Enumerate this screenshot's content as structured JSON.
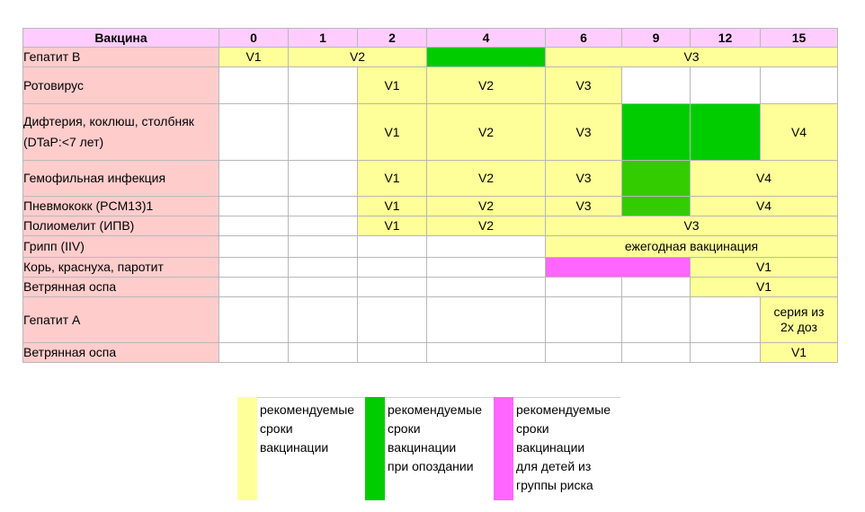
{
  "header": {
    "vaccine_label": "Вакцина",
    "months": [
      "0",
      "1",
      "2",
      "4",
      "6",
      "9",
      "12",
      "15"
    ]
  },
  "rows": [
    {
      "name": "Гепатит B",
      "cells": [
        "V1",
        "V2",
        "V3"
      ]
    },
    {
      "name": "Ротовирус",
      "cells": [
        "V1",
        "V2",
        "V3"
      ]
    },
    {
      "name_line1": "Дифтерия, коклюш, столбняк",
      "name_line2": "(DTaP:<7 лет)",
      "cells": [
        "V1",
        "V2",
        "V3",
        "V4"
      ]
    },
    {
      "name": "Гемофильная инфекция",
      "cells": [
        "V1",
        "V2",
        "V3",
        "V4"
      ]
    },
    {
      "name": "Пневмококк (PCM13)1",
      "cells": [
        "V1",
        "V2",
        "V3",
        "V4"
      ]
    },
    {
      "name": "Полиомелит (ИПВ)",
      "cells": [
        "V1",
        "V2",
        "V3"
      ]
    },
    {
      "name": "Грипп (IIV)",
      "cells": [
        "ежегодная вакцинация"
      ]
    },
    {
      "name": "Корь, краснуха, паротит",
      "cells": [
        "V1"
      ]
    },
    {
      "name": "Ветрянная оспа",
      "cells": [
        "V1"
      ]
    },
    {
      "name": "Гепатит А",
      "cells_line1": "серия из",
      "cells_line2": "2х доз"
    },
    {
      "name": "Ветрянная оспа",
      "cells": [
        "V1"
      ]
    }
  ],
  "legend": [
    {
      "color": "#ffff99",
      "lines": [
        "рекомендуемые",
        "сроки",
        "вакцинации"
      ]
    },
    {
      "color": "#00cc00",
      "lines": [
        "рекомендуемые",
        "сроки",
        "вакцинации",
        "при  опоздании"
      ]
    },
    {
      "color": "#ff66ff",
      "lines": [
        "рекомендуемые",
        "сроки",
        "вакцинации",
        "для  детей из",
        "группы риска"
      ]
    }
  ]
}
